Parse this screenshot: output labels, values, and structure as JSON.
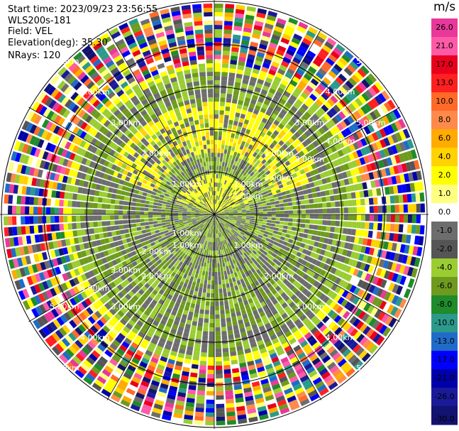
{
  "header": {
    "start_time": "Start time: 2023/09/23 23:56:55",
    "instrument": "WLS200s-181",
    "field": "Field: VEL",
    "elevation": "Elevation(deg): 35.30",
    "nrays": "NRays: 120"
  },
  "colorbar": {
    "unit": "m/s",
    "ticks": [
      "26.0",
      "21.0",
      "17.0",
      "13.0",
      "10.0",
      "8.0",
      "6.0",
      "4.0",
      "2.0",
      "1.0",
      "0.0",
      "-1.0",
      "-2.0",
      "-4.0",
      "-6.0",
      "-8.0",
      "-10.0",
      "-13.0",
      "-17.0",
      "-21.0",
      "-26.0",
      "-30.0"
    ],
    "colors": [
      "#e8389a",
      "#ff5aa8",
      "#e8001c",
      "#ff2020",
      "#ff6a28",
      "#ff8a4a",
      "#ffab00",
      "#ffd200",
      "#ffff00",
      "#ffff80",
      "#ffffff",
      "#6d6d6d",
      "#555555",
      "#9acd32",
      "#6e9a1e",
      "#1f8b2a",
      "#2b9a8a",
      "#1f6cc8",
      "#0000ff",
      "#0000aa",
      "#1a1a9a",
      "#121270"
    ]
  },
  "chart_data": {
    "type": "heatmap",
    "title": "",
    "field": "VEL",
    "unit": "m/s",
    "nrays": 120,
    "elevation_deg": 35.3,
    "range_rings_km": [
      1.0,
      2.0,
      3.0,
      4.0,
      5.0
    ],
    "range_ring_labels": [
      "1.00km",
      "2.00km",
      "3.00km",
      "4.00km",
      "5.00km"
    ],
    "value_range": [
      -30.0,
      26.0
    ],
    "observed_regions": [
      {
        "range_km": [
          0.0,
          3.3
        ],
        "description_values": "mostly -1.0 to -2.0 with 1.0 to 2.0 at north near 1.5-2.5 km"
      },
      {
        "range_km": [
          3.3,
          5.0
        ],
        "description_values": "noise across full scale"
      }
    ]
  }
}
